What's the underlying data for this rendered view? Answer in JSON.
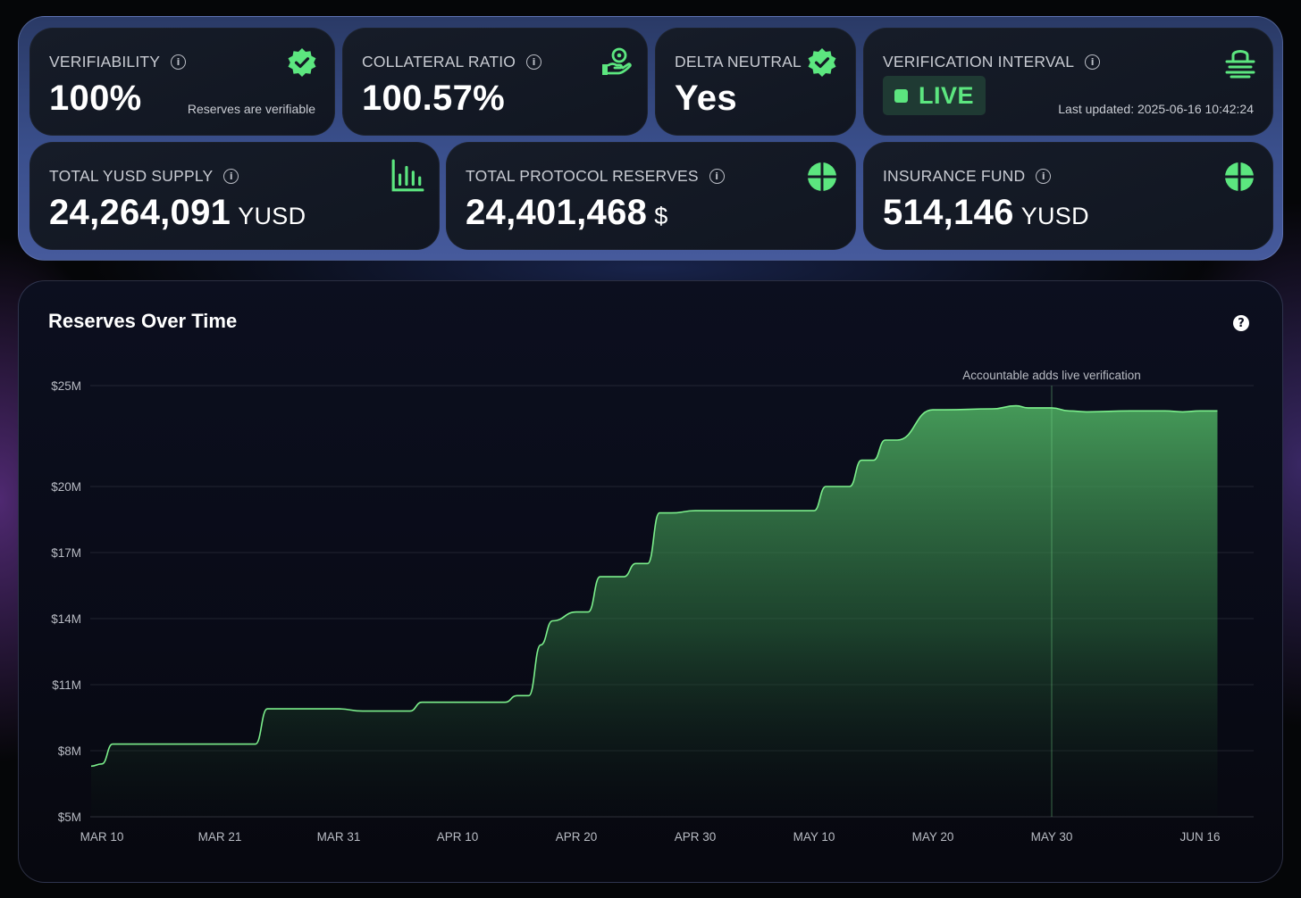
{
  "cards": {
    "verifiability": {
      "label": "VERIFIABILITY",
      "value": "100%",
      "sub": "Reserves are verifiable"
    },
    "collateral_ratio": {
      "label": "COLLATERAL RATIO",
      "value": "100.57%"
    },
    "delta_neutral": {
      "label": "DELTA NEUTRAL",
      "value": "Yes"
    },
    "verification_interval": {
      "label": "VERIFICATION INTERVAL",
      "badge": "LIVE",
      "sub": "Last updated: 2025-06-16 10:42:24"
    },
    "total_supply": {
      "label": "TOTAL YUSD SUPPLY",
      "value": "24,264,091",
      "unit": "YUSD"
    },
    "total_reserves": {
      "label": "TOTAL PROTOCOL RESERVES",
      "value": "24,401,468",
      "unit": "$"
    },
    "insurance_fund": {
      "label": "INSURANCE FUND",
      "value": "514,146",
      "unit": "YUSD"
    }
  },
  "icons": {
    "verified": "verified-badge-icon",
    "hand_coin": "hand-holding-coin-icon",
    "bar_chart": "bar-chart-icon",
    "pie": "pie-segments-icon",
    "lock": "lock-icon",
    "info": "info-icon",
    "help": "help-icon"
  },
  "colors": {
    "accent": "#5ce67f",
    "line": "#7cf08c",
    "fill": "#3f9c55"
  },
  "chart": {
    "title": "Reserves Over Time"
  },
  "chart_data": {
    "type": "area",
    "title": "Reserves Over Time",
    "xlabel": "",
    "ylabel": "",
    "x_ticks": [
      "MAR 10",
      "MAR 21",
      "MAR 31",
      "APR 10",
      "APR 20",
      "APR 30",
      "MAY 10",
      "MAY 20",
      "MAY 30",
      "JUN 16"
    ],
    "y_ticks": [
      "$5M",
      "$8M",
      "$11M",
      "$14M",
      "$17M",
      "$20M",
      "$25M"
    ],
    "annotation": {
      "x": "MAY 30",
      "text": "Accountable adds live verification"
    },
    "series": [
      {
        "x": [
          "2025-03-09",
          "2025-03-10",
          "2025-03-11",
          "2025-03-21",
          "2025-03-24",
          "2025-03-25",
          "2025-03-31",
          "2025-04-02",
          "2025-04-06",
          "2025-04-07",
          "2025-04-14",
          "2025-04-15",
          "2025-04-16",
          "2025-04-17",
          "2025-04-18",
          "2025-04-20",
          "2025-04-21",
          "2025-04-22",
          "2025-04-24",
          "2025-04-25",
          "2025-04-26",
          "2025-04-27",
          "2025-04-28",
          "2025-04-30",
          "2025-05-01",
          "2025-05-10",
          "2025-05-11",
          "2025-05-13",
          "2025-05-14",
          "2025-05-15",
          "2025-05-16",
          "2025-05-17",
          "2025-05-20",
          "2025-05-21",
          "2025-05-25",
          "2025-05-27",
          "2025-05-28",
          "2025-05-30",
          "2025-06-01",
          "2025-06-03",
          "2025-06-08",
          "2025-06-12",
          "2025-06-14",
          "2025-06-16",
          "2025-06-18"
        ],
        "values": [
          7.3,
          7.4,
          8.3,
          8.3,
          8.3,
          9.9,
          9.9,
          9.8,
          9.8,
          10.2,
          10.2,
          10.5,
          10.5,
          12.8,
          13.9,
          14.3,
          14.3,
          15.9,
          15.9,
          16.5,
          16.5,
          18.8,
          18.8,
          18.9,
          18.9,
          18.9,
          20.0,
          20.0,
          21.3,
          21.3,
          22.3,
          22.3,
          23.8,
          23.8,
          23.85,
          24.0,
          23.9,
          23.9,
          23.75,
          23.7,
          23.75,
          23.75,
          23.7,
          23.75,
          23.75
        ]
      }
    ]
  }
}
